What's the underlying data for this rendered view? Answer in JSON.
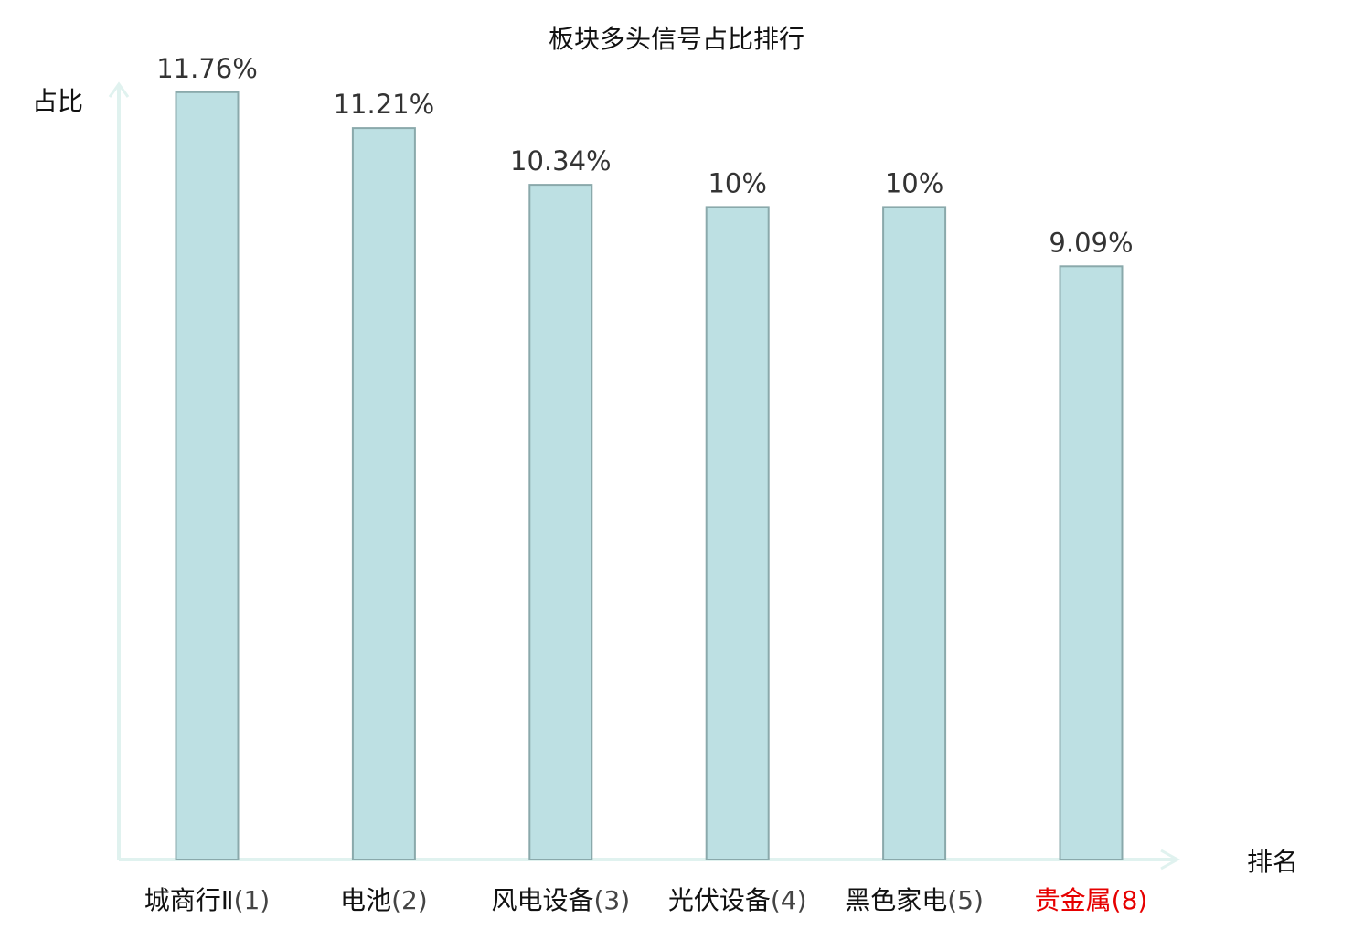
{
  "chart_data": {
    "type": "bar",
    "title": "板块多头信号占比排行",
    "xlabel": "排名",
    "ylabel": "占比",
    "categories": [
      "城商行Ⅱ",
      "电池",
      "风电设备",
      "光伏设备",
      "黑色家电",
      "贵金属"
    ],
    "ranks": [
      "(1)",
      "(2)",
      "(3)",
      "(4)",
      "(5)",
      "(8)"
    ],
    "values": [
      11.76,
      11.21,
      10.34,
      10,
      10,
      9.09
    ],
    "value_labels": [
      "11.76%",
      "11.21%",
      "10.34%",
      "10%",
      "10%",
      "9.09%"
    ],
    "highlight_index": 5,
    "ylim": [
      0,
      12.5
    ],
    "grid": false,
    "legend": "none"
  },
  "colors": {
    "bar_fill": "#bde0e3",
    "bar_stroke": "#8aa9ab",
    "axis": "#e0f2ef",
    "text": "#111111",
    "value_text": "#333333",
    "rank_text": "#444444",
    "highlight": "#e60000"
  }
}
